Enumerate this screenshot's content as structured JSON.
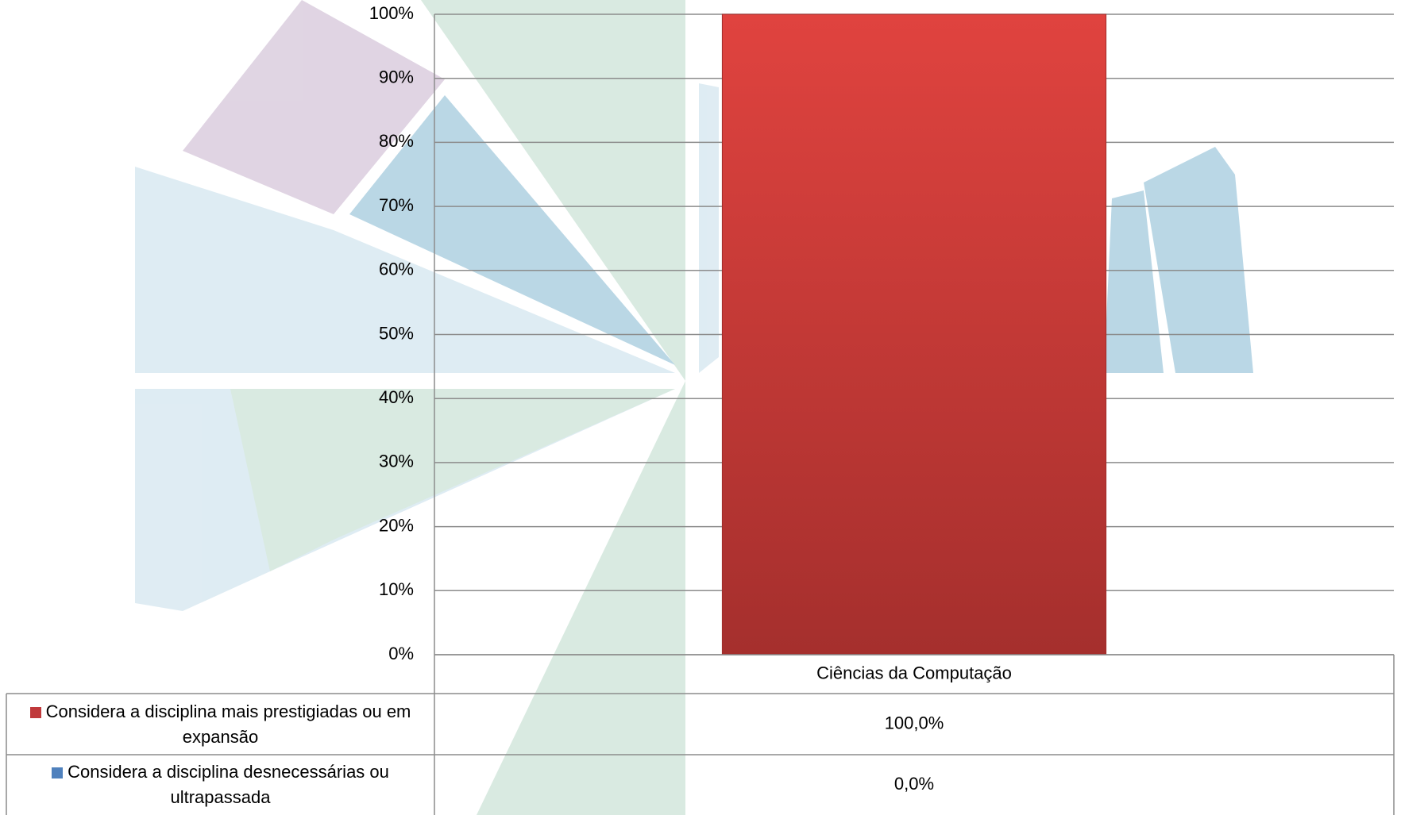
{
  "chart_data": {
    "type": "stacked-bar",
    "categories": [
      "Ciências da Computação"
    ],
    "series": [
      {
        "name": "Considera a disciplina mais prestigiadas ou em expansão",
        "color": "#c0393b",
        "values": [
          100
        ],
        "value_labels": [
          "100,0%"
        ]
      },
      {
        "name": "Considera a disciplina desnecessárias ou ultrapassada",
        "color": "#4f81bd",
        "values": [
          0
        ],
        "value_labels": [
          "0,0%"
        ]
      }
    ],
    "ylim": [
      0,
      100
    ],
    "yticks": [
      {
        "value": 0,
        "label": "0%"
      },
      {
        "value": 10,
        "label": "10%"
      },
      {
        "value": 20,
        "label": "20%"
      },
      {
        "value": 30,
        "label": "30%"
      },
      {
        "value": 40,
        "label": "40%"
      },
      {
        "value": 50,
        "label": "50%"
      },
      {
        "value": 60,
        "label": "60%"
      },
      {
        "value": 70,
        "label": "70%"
      },
      {
        "value": 80,
        "label": "80%"
      },
      {
        "value": 90,
        "label": "90%"
      },
      {
        "value": 100,
        "label": "100%"
      }
    ],
    "grid": true,
    "data_table": true
  }
}
